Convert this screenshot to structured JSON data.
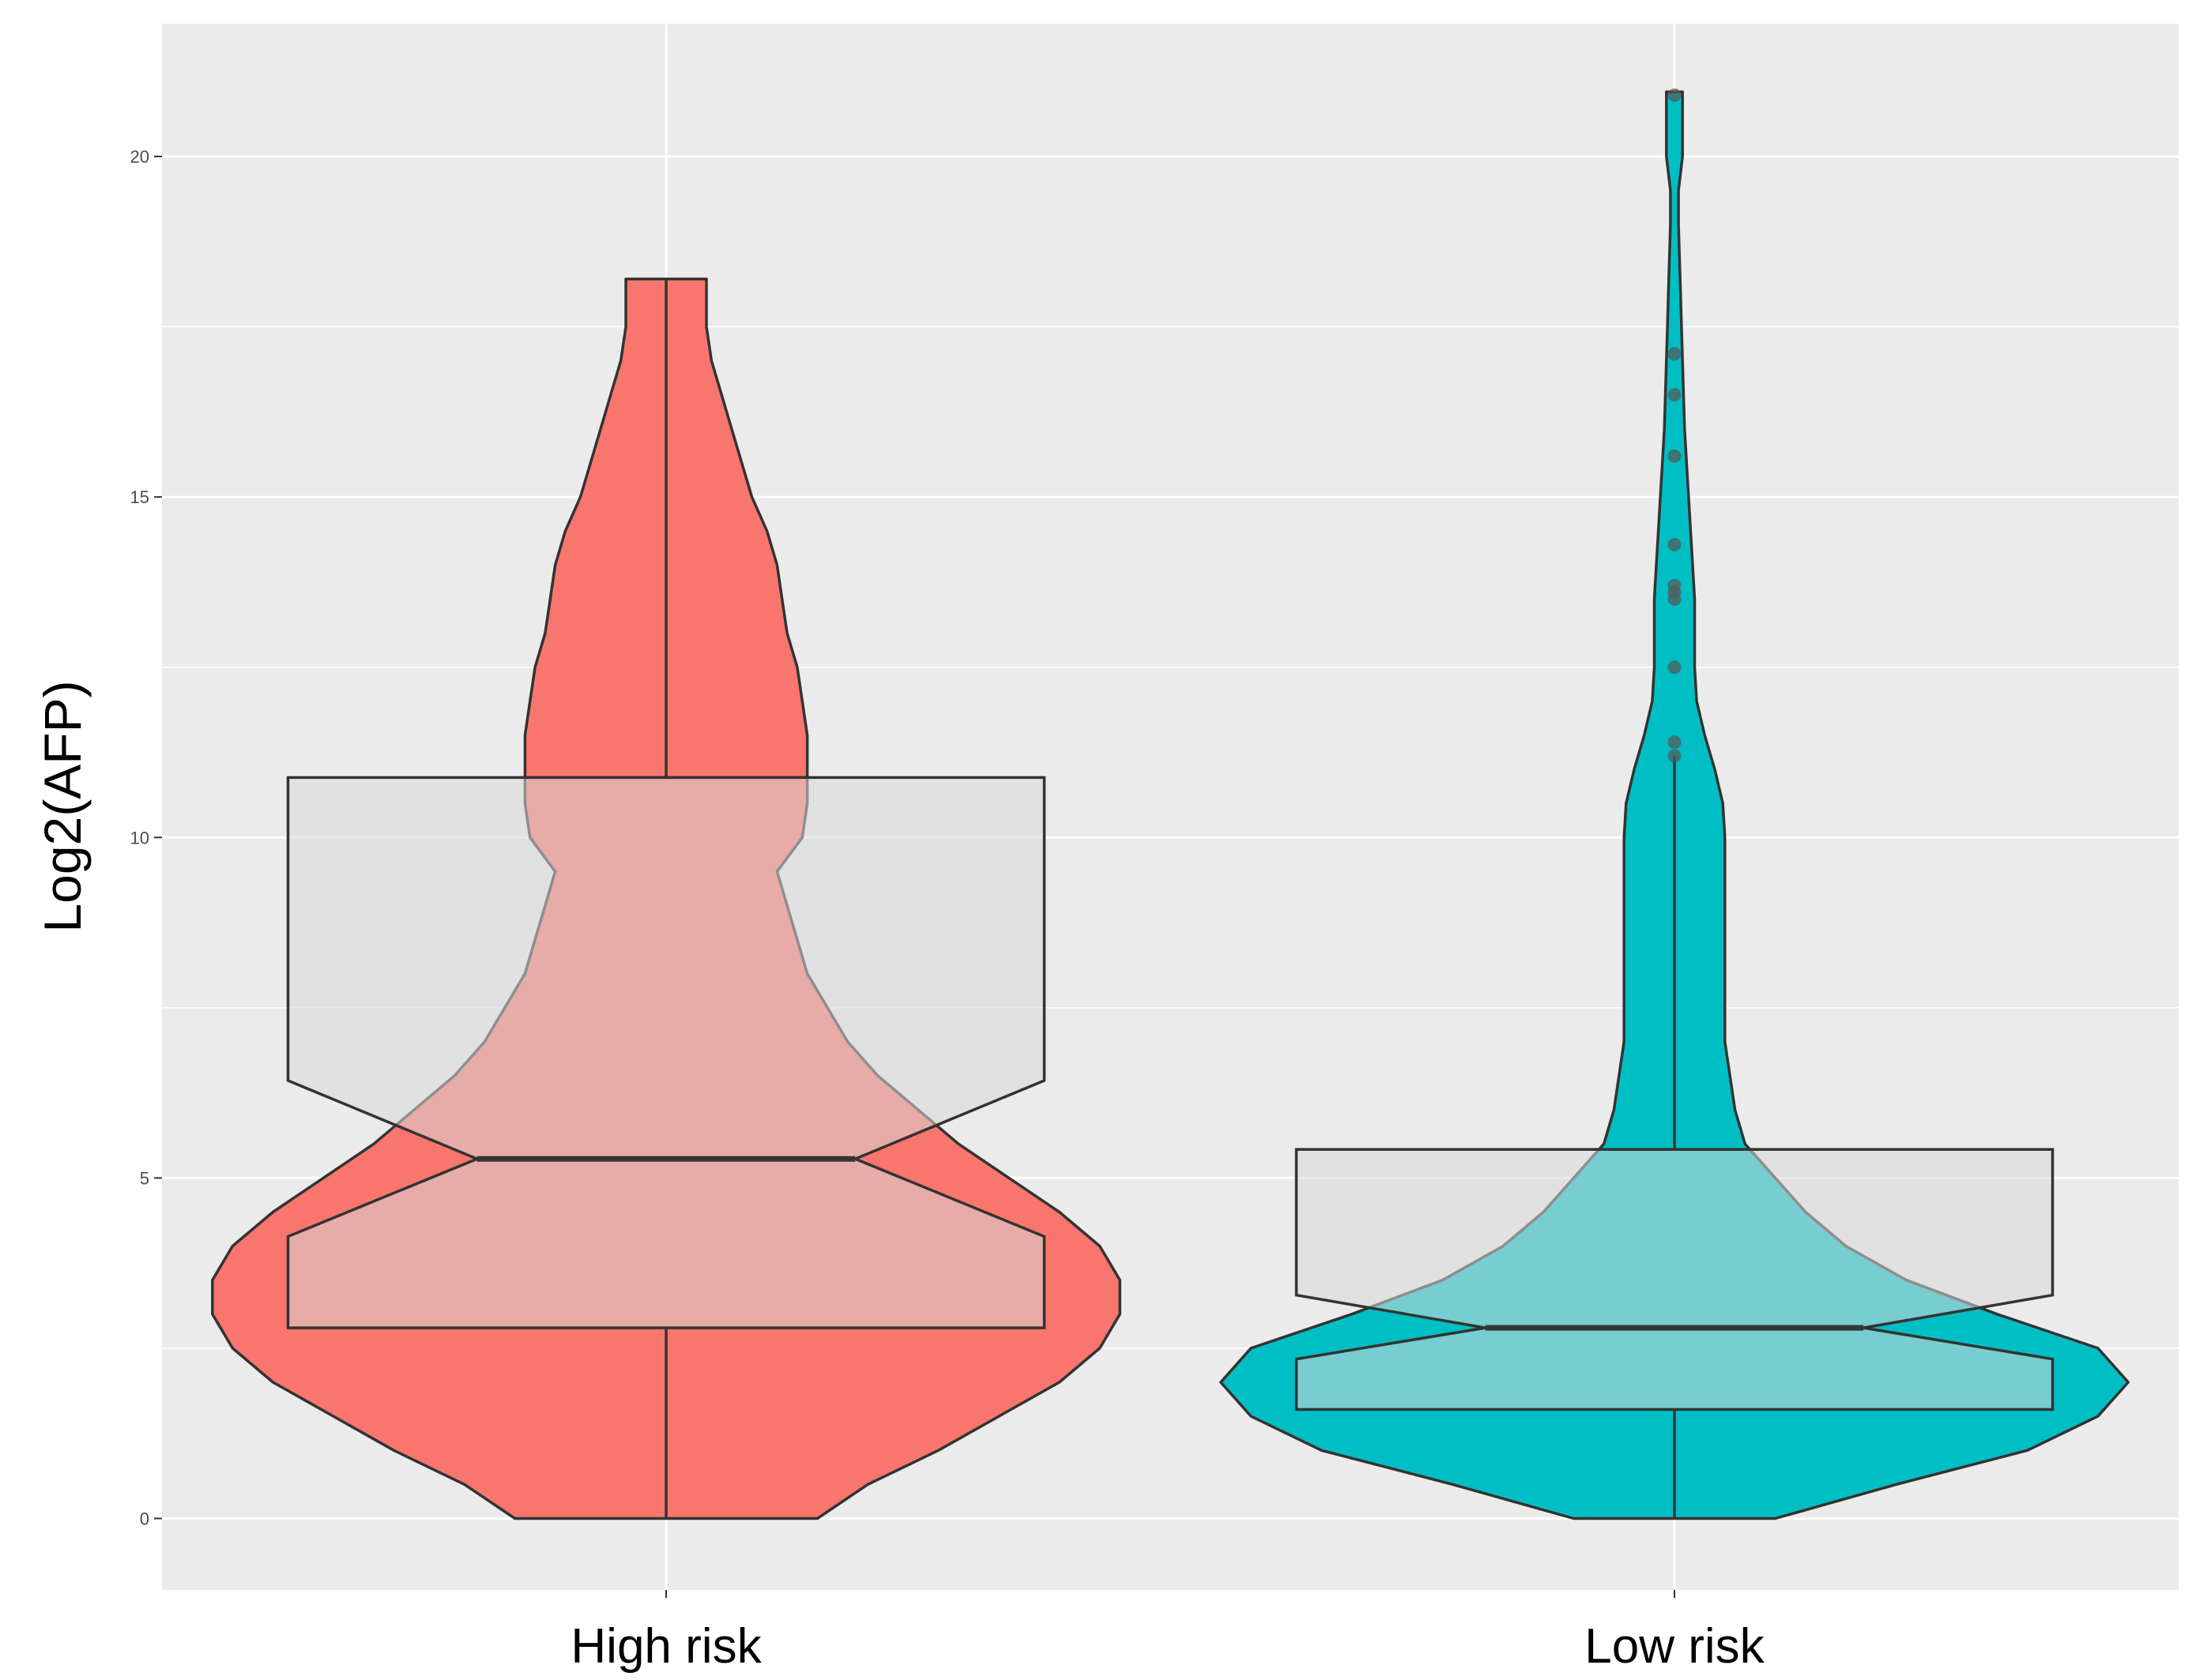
{
  "chart_data": {
    "type": "violin",
    "title": "",
    "xlabel": "",
    "ylabel": "Log2(AFP)",
    "ylim": [
      -1.05,
      21.95
    ],
    "yticks": [
      0,
      5,
      10,
      15,
      20
    ],
    "ytick_labels": [
      "0",
      "5",
      "10",
      "15",
      "20"
    ],
    "grid": true,
    "legend": "none",
    "categories": [
      "High risk",
      "Low risk"
    ],
    "colors": {
      "High risk": "#F8766D",
      "Low risk": "#00BFC4",
      "panel_background": "#EBEBEB",
      "box_fill": "#D9D9D9",
      "outline": "#333333"
    },
    "series": [
      {
        "category": "High risk",
        "violin": {
          "y": [
            0,
            0.5,
            1,
            1.5,
            2,
            2.5,
            3,
            3.5,
            4,
            4.5,
            5,
            5.5,
            6,
            6.5,
            7,
            7.5,
            8,
            8.5,
            9,
            9.5,
            10,
            10.5,
            11,
            11.5,
            12,
            12.5,
            13,
            13.5,
            14,
            14.5,
            15,
            15.5,
            16,
            16.5,
            17,
            17.5,
            18,
            18.2
          ],
          "width": [
            0.15,
            0.2,
            0.27,
            0.33,
            0.39,
            0.43,
            0.45,
            0.45,
            0.43,
            0.39,
            0.34,
            0.29,
            0.25,
            0.21,
            0.18,
            0.16,
            0.14,
            0.13,
            0.12,
            0.11,
            0.135,
            0.14,
            0.14,
            0.14,
            0.135,
            0.13,
            0.12,
            0.115,
            0.11,
            0.1,
            0.085,
            0.075,
            0.065,
            0.055,
            0.045,
            0.04,
            0.04,
            0.04
          ]
        },
        "box": {
          "lower_hinge": 2.8,
          "median": 5.28,
          "upper_hinge": 10.88,
          "notch_lower": 4.14,
          "notch_upper": 6.43,
          "whisker_low": 0,
          "whisker_high": 18.22
        },
        "outliers": []
      },
      {
        "category": "Low risk",
        "violin": {
          "y": [
            0,
            0.5,
            1,
            1.5,
            2,
            2.5,
            3,
            3.5,
            4,
            4.5,
            5,
            5.5,
            6,
            6.5,
            7,
            7.5,
            8,
            8.5,
            9,
            9.5,
            10,
            10.5,
            11,
            11.5,
            12,
            12.5,
            13,
            13.5,
            14,
            14.5,
            15,
            15.5,
            16,
            16.5,
            17,
            17.5,
            18,
            18.5,
            19,
            19.5,
            20,
            20.5,
            20.95
          ],
          "width": [
            0.1,
            0.22,
            0.35,
            0.42,
            0.45,
            0.42,
            0.32,
            0.23,
            0.17,
            0.13,
            0.1,
            0.07,
            0.06,
            0.055,
            0.05,
            0.05,
            0.05,
            0.05,
            0.05,
            0.05,
            0.05,
            0.048,
            0.04,
            0.03,
            0.022,
            0.02,
            0.02,
            0.02,
            0.018,
            0.016,
            0.014,
            0.012,
            0.01,
            0.009,
            0.008,
            0.007,
            0.006,
            0.005,
            0.004,
            0.004,
            0.008,
            0.008,
            0.008
          ]
        },
        "box": {
          "lower_hinge": 1.6,
          "median": 2.8,
          "upper_hinge": 5.42,
          "notch_lower": 2.34,
          "notch_upper": 3.28,
          "whisker_low": 0,
          "whisker_high": 11.2
        },
        "outliers": [
          11.2,
          11.4,
          12.5,
          13.5,
          13.6,
          13.7,
          14.3,
          15.6,
          16.5,
          17.1,
          20.9
        ]
      }
    ]
  }
}
